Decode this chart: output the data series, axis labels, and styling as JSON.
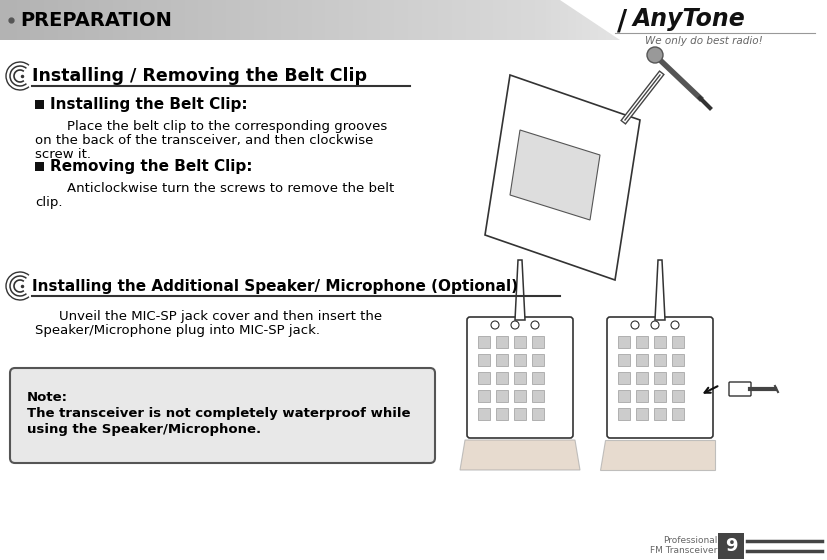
{
  "bg_color": "#ffffff",
  "header_text": "PREPARATION",
  "header_text_color": "#000000",
  "anytone_sub": "We only do best radio!",
  "section1_title": "Installing / Removing the Belt Clip",
  "sub1_title": "Installing the Belt Clip:",
  "sub1_body1": "    Place the belt clip to the corresponding grooves",
  "sub1_body2": "on the back of the transceiver, and then clockwise",
  "sub1_body3": "screw it.",
  "sub2_title": "Removing the Belt Clip:",
  "sub2_body1": "    Anticlockwise turn the screws to remove the belt",
  "sub2_body2": "clip.",
  "section2_title": "Installing the Additional Speaker/ Microphone (Optional)",
  "section2_body1": "    Unveil the MIC-SP jack cover and then insert the",
  "section2_body2": "Speaker/Microphone plug into MIC-SP jack.",
  "note_title": "Note:",
  "note_body1": "The transceiver is not completely waterproof while",
  "note_body2": "using the Speaker/Microphone.",
  "footer_left1": "Professional",
  "footer_left2": "FM Transceiver",
  "footer_page": "9",
  "text_color": "#000000",
  "gray_color": "#888888",
  "dark_color": "#222222",
  "note_border": "#555555",
  "note_bg": "#e8e8e8",
  "footer_box_color": "#555555"
}
